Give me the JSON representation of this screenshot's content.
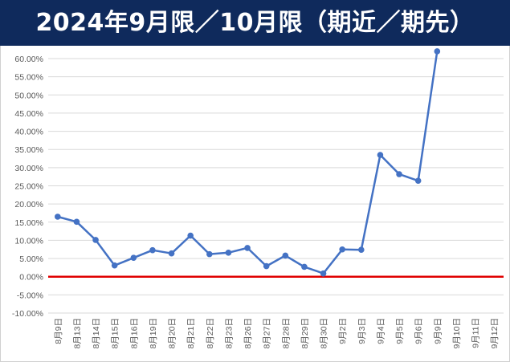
{
  "header": {
    "title": "2024年9月限／10月限（期近／期先）"
  },
  "colors": {
    "title_bg": "#0f2a5c",
    "title_text": "#ffffff",
    "series_line": "#4472c4",
    "zero_line": "#e00000",
    "grid": "#d9d9d9",
    "axis_text": "#595959"
  },
  "chart_data": {
    "type": "line",
    "title": "2024年9月限／10月限（期近／期先）",
    "xlabel": "",
    "ylabel": "",
    "ylim": [
      -0.1,
      0.6
    ],
    "ytick_step": 0.05,
    "ytick_labels": [
      "-10.00%",
      "-5.00%",
      "0.00%",
      "5.00%",
      "10.00%",
      "15.00%",
      "20.00%",
      "25.00%",
      "30.00%",
      "35.00%",
      "40.00%",
      "45.00%",
      "50.00%",
      "55.00%",
      "60.00%"
    ],
    "grid": true,
    "legend": "none",
    "categories": [
      "8月9日",
      "8月13日",
      "8月14日",
      "8月15日",
      "8月16日",
      "8月19日",
      "8月20日",
      "8月21日",
      "8月22日",
      "8月23日",
      "8月26日",
      "8月27日",
      "8月28日",
      "8月29日",
      "8月30日",
      "9月2日",
      "9月3日",
      "9月4日",
      "9月5日",
      "9月6日",
      "9月9日",
      "9月10日",
      "9月11日",
      "9月12日"
    ],
    "series": [
      {
        "values": [
          0.165,
          0.151,
          0.101,
          0.031,
          0.052,
          0.073,
          0.064,
          0.113,
          0.062,
          0.066,
          0.079,
          0.029,
          0.058,
          0.027,
          0.009,
          0.075,
          0.074,
          0.335,
          0.282,
          0.264,
          0.62,
          null,
          null,
          null
        ]
      }
    ],
    "reference_line": {
      "y": 0.0
    }
  }
}
